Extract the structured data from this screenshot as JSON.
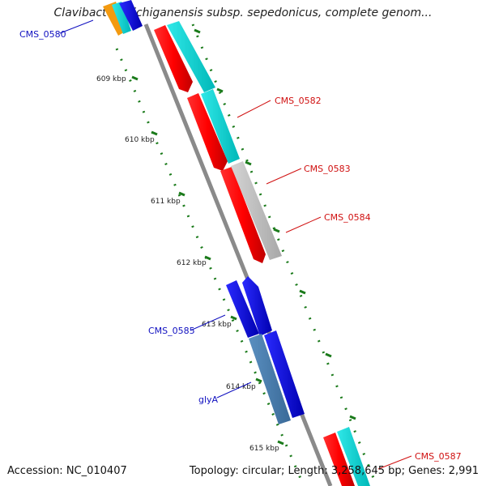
{
  "title": "Clavibacter michiganensis subsp. sepedonicus, complete genom...",
  "footer": {
    "accession": "Accession: NC_010407",
    "summary": "Topology: circular; Length: 3,258,645 bp; Genes: 2,991"
  },
  "ticks": [
    "609 kbp",
    "610 kbp",
    "611 kbp",
    "612 kbp",
    "613 kbp",
    "614 kbp",
    "615 kbp"
  ],
  "gene_labels": [
    {
      "text": "CMS_0580",
      "color": "#1010c0"
    },
    {
      "text": "CMS_0582",
      "color": "#d01010"
    },
    {
      "text": "CMS_0583",
      "color": "#d01010"
    },
    {
      "text": "CMS_0584",
      "color": "#d01010"
    },
    {
      "text": "CMS_0585",
      "color": "#1010c0"
    },
    {
      "text": "glyA",
      "color": "#1010c0"
    },
    {
      "text": "CMS_0587",
      "color": "#d01010"
    }
  ],
  "colors": {
    "backbone": "#8a8a8a",
    "forward_strand": "#ff0000",
    "reverse_strand": "#0000e0",
    "cog_cyan": "#00d8d8",
    "cog_grey": "#c0c0c0",
    "cog_steel": "#4a7fb0",
    "tick_green": "#1a7a1a"
  }
}
